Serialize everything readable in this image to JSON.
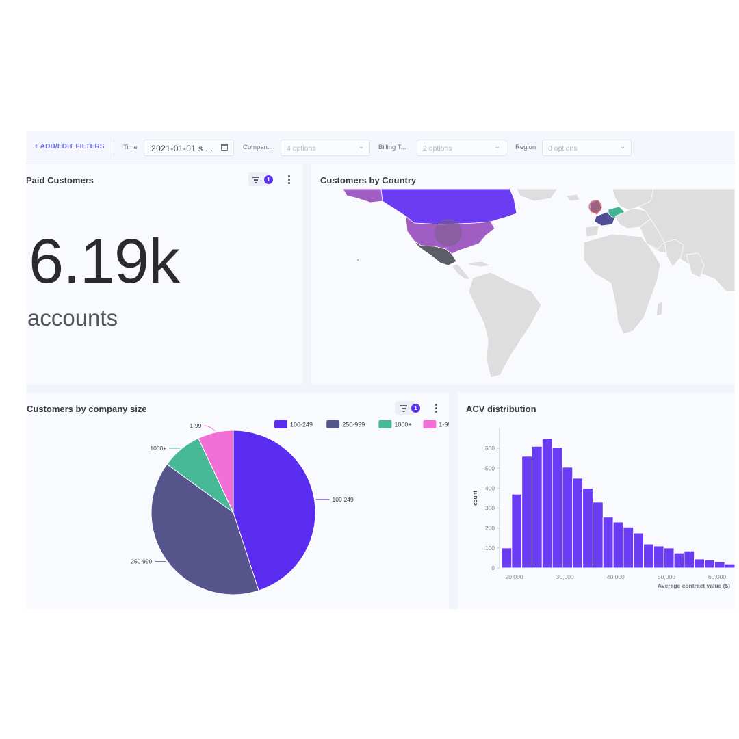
{
  "filters": {
    "add_label": "+ ADD/EDIT FILTERS",
    "time_label": "Time",
    "time_value": "2021-01-01 s ...",
    "company_label": "Compan...",
    "company_placeholder": "4 options",
    "billing_label": "Billing T...",
    "billing_placeholder": "2 options",
    "region_label": "Region",
    "region_placeholder": "8 options"
  },
  "paid_customers": {
    "title": "Paid Customers",
    "value": "6.19k",
    "unit": "accounts",
    "filter_count": "1"
  },
  "country": {
    "title": "Customers by Country",
    "highlighted": [
      {
        "name": "United States",
        "color": "#a05ec4"
      },
      {
        "name": "Canada",
        "color": "#6b3cf2"
      },
      {
        "name": "Mexico",
        "color": "#5c5d66"
      },
      {
        "name": "France",
        "color": "#4e4d96"
      },
      {
        "name": "Germany",
        "color": "#43b596"
      },
      {
        "name": "United Kingdom",
        "color": "#c46a7a"
      }
    ],
    "base_color": "#dedede"
  },
  "company_size": {
    "title": "Customers by company size",
    "filter_count": "1"
  },
  "acv": {
    "title": "ACV distribution"
  },
  "chart_data": [
    {
      "type": "pie",
      "title": "Customers by company size",
      "categories": [
        "100-249",
        "250-999",
        "1000+",
        "1-99"
      ],
      "values": [
        45,
        40,
        8,
        7
      ],
      "colors": [
        "#5a2cf0",
        "#56558b",
        "#48b996",
        "#f36fd8"
      ],
      "legend": "top-right"
    },
    {
      "type": "bar",
      "title": "ACV distribution",
      "xlabel": "Average contract value ($)",
      "ylabel": "count",
      "x_start": 17500,
      "bin_width": 2000,
      "values": [
        100,
        370,
        560,
        610,
        650,
        605,
        505,
        450,
        400,
        330,
        255,
        230,
        205,
        175,
        120,
        110,
        100,
        75,
        85,
        45,
        40,
        30,
        20
      ],
      "xticks": [
        20000,
        30000,
        40000,
        50000,
        60000
      ],
      "xtick_labels": [
        "20,000",
        "30,000",
        "40,000",
        "50,000",
        "60,000"
      ],
      "yticks": [
        0,
        100,
        200,
        300,
        400,
        500,
        600
      ],
      "ylim": [
        0,
        700
      ],
      "color": "#6a3cf4"
    }
  ]
}
